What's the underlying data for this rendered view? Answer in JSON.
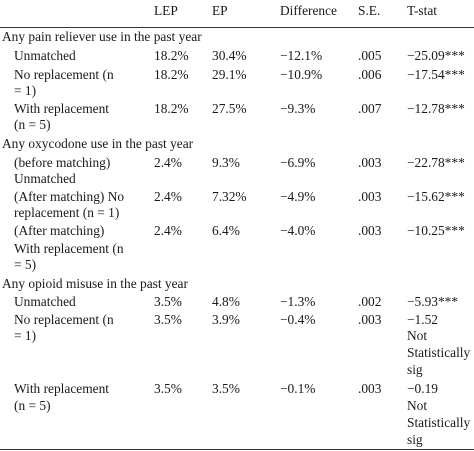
{
  "table": {
    "columns": [
      "",
      "LEP",
      "EP",
      "Difference",
      "S.E.",
      "T-stat"
    ],
    "sections": [
      {
        "title": "Any pain reliever use in the past year",
        "rows": [
          {
            "label": [
              "Unmatched"
            ],
            "lep": "18.2%",
            "ep": "30.4%",
            "diff": "−12.1%",
            "se": ".005",
            "tstat": [
              "−25.09***"
            ]
          },
          {
            "label": [
              "No replacement (n",
              "= 1)"
            ],
            "lep": "18.2%",
            "ep": "29.1%",
            "diff": "−10.9%",
            "se": ".006",
            "tstat": [
              "−17.54***"
            ]
          },
          {
            "label": [
              "With replacement",
              "(n = 5)"
            ],
            "lep": "18.2%",
            "ep": "27.5%",
            "diff": "−9.3%",
            "se": ".007",
            "tstat": [
              "−12.78***"
            ]
          }
        ]
      },
      {
        "title": "Any oxycodone use in the past year",
        "rows": [
          {
            "label": [
              "(before matching)",
              "Unmatched"
            ],
            "lep": "2.4%",
            "ep": "9.3%",
            "diff": "−6.9%",
            "se": ".003",
            "tstat": [
              "−22.78***"
            ]
          },
          {
            "label": [
              "(After matching) No",
              "replacement (n = 1)"
            ],
            "lep": "2.4%",
            "ep": "7.32%",
            "diff": "−4.9%",
            "se": ".003",
            "tstat": [
              "−15.62***"
            ]
          },
          {
            "label": [
              "(After matching)",
              "With replacement (n",
              "= 5)"
            ],
            "lep": "2.4%",
            "ep": "6.4%",
            "diff": "−4.0%",
            "se": ".003",
            "tstat": [
              "−10.25***"
            ]
          }
        ]
      },
      {
        "title": "Any opioid misuse in the past year",
        "rows": [
          {
            "label": [
              "Unmatched"
            ],
            "lep": "3.5%",
            "ep": "4.8%",
            "diff": "−1.3%",
            "se": ".002",
            "tstat": [
              "−5.93***"
            ]
          },
          {
            "label": [
              "No replacement (n",
              "= 1)"
            ],
            "lep": "3.5%",
            "ep": "3.9%",
            "diff": "−0.4%",
            "se": ".003",
            "tstat": [
              "−1.52",
              "Not",
              "Statistically",
              "sig"
            ]
          },
          {
            "label": [
              "With replacement",
              "(n = 5)"
            ],
            "lep": "3.5%",
            "ep": "3.5%",
            "diff": "−0.1%",
            "se": ".003",
            "tstat": [
              "−0.19",
              "Not",
              "Statistically",
              "sig"
            ]
          }
        ]
      }
    ]
  }
}
